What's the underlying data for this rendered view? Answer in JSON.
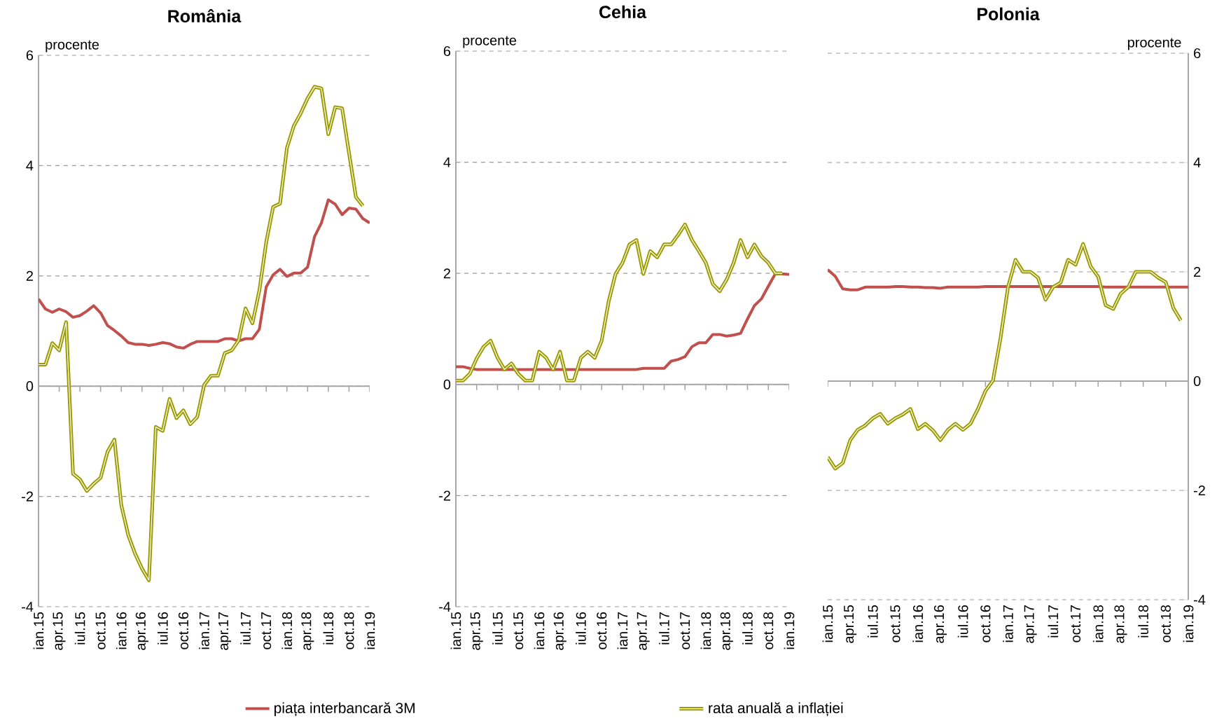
{
  "chart_data": [
    {
      "type": "line",
      "title": "România",
      "ylabel": "procente",
      "categories": [
        "ian.15",
        null,
        null,
        "apr.15",
        null,
        null,
        "iul.15",
        null,
        null,
        "oct.15",
        null,
        null,
        "ian.16",
        null,
        null,
        "apr.16",
        null,
        null,
        "iul.16",
        null,
        null,
        "oct.16",
        null,
        null,
        "ian.17",
        null,
        null,
        "apr.17",
        null,
        null,
        "iul.17",
        null,
        null,
        "oct.17",
        null,
        null,
        "ian.18",
        null,
        null,
        "apr.18",
        null,
        null,
        "iul.18",
        null,
        null,
        "oct.18",
        null,
        null,
        "ian.19"
      ],
      "series": [
        {
          "name": "piața interbancară 3M",
          "color": "#c0504d",
          "values": [
            1.58,
            1.4,
            1.34,
            1.4,
            1.35,
            1.25,
            1.28,
            1.36,
            1.46,
            1.33,
            1.1,
            1.01,
            0.91,
            0.79,
            0.76,
            0.76,
            0.74,
            0.76,
            0.79,
            0.77,
            0.71,
            0.69,
            0.76,
            0.81,
            0.81,
            0.81,
            0.81,
            0.86,
            0.86,
            0.82,
            0.86,
            0.86,
            1.03,
            1.8,
            2.02,
            2.12,
            1.99,
            2.05,
            2.05,
            2.16,
            2.71,
            2.96,
            3.38,
            3.3,
            3.11,
            3.23,
            3.21,
            3.04,
            2.96
          ]
        },
        {
          "name": "rata anuală a inflației",
          "color": "#9c9c00",
          "values": [
            0.39,
            0.39,
            0.78,
            0.65,
            1.16,
            -1.59,
            -1.69,
            -1.9,
            -1.77,
            -1.66,
            -1.19,
            -0.97,
            -2.16,
            -2.7,
            -3.04,
            -3.31,
            -3.52,
            -0.74,
            -0.81,
            -0.23,
            -0.58,
            -0.44,
            -0.69,
            -0.56,
            0.02,
            0.19,
            0.19,
            0.6,
            0.65,
            0.83,
            1.41,
            1.14,
            1.73,
            2.61,
            3.25,
            3.31,
            4.32,
            4.72,
            4.95,
            5.22,
            5.43,
            5.4,
            4.57,
            5.06,
            5.04,
            4.23,
            3.43,
            3.27,
            null
          ]
        }
      ],
      "ylim": [
        -4,
        6
      ],
      "yticks": [
        -4,
        -2,
        0,
        2,
        4,
        6
      ],
      "grid": "y",
      "legend": "bottom"
    },
    {
      "type": "line",
      "title": "Cehia",
      "ylabel": "procente",
      "categories": [
        "ian.15",
        null,
        null,
        "apr.15",
        null,
        null,
        "iul.15",
        null,
        null,
        "oct.15",
        null,
        null,
        "ian.16",
        null,
        null,
        "apr.16",
        null,
        null,
        "iul.16",
        null,
        null,
        "oct.16",
        null,
        null,
        "ian.17",
        null,
        null,
        "apr.17",
        null,
        null,
        "iul.17",
        null,
        null,
        "oct.17",
        null,
        null,
        "ian.18",
        null,
        null,
        "apr.18",
        null,
        null,
        "iul.18",
        null,
        null,
        "oct.18",
        null,
        null,
        "ian.19"
      ],
      "series": [
        {
          "color": "#c0504d",
          "values": [
            0.32,
            0.32,
            0.29,
            0.27,
            0.27,
            0.27,
            0.27,
            0.27,
            0.27,
            0.27,
            0.27,
            0.27,
            0.27,
            0.27,
            0.27,
            0.27,
            0.27,
            0.27,
            0.27,
            0.27,
            0.27,
            0.27,
            0.27,
            0.27,
            0.27,
            0.27,
            0.27,
            0.29,
            0.29,
            0.29,
            0.29,
            0.42,
            0.45,
            0.5,
            0.68,
            0.75,
            0.75,
            0.9,
            0.9,
            0.87,
            0.89,
            0.92,
            1.18,
            1.42,
            1.54,
            1.77,
            1.99,
            1.99,
            1.98
          ]
        },
        {
          "color": "#9c9c00",
          "values": [
            0.07,
            0.07,
            0.19,
            0.47,
            0.68,
            0.79,
            0.48,
            0.27,
            0.38,
            0.19,
            0.07,
            0.07,
            0.59,
            0.48,
            0.27,
            0.59,
            0.07,
            0.07,
            0.48,
            0.59,
            0.48,
            0.79,
            1.49,
            1.99,
            2.19,
            2.52,
            2.6,
            1.99,
            2.4,
            2.29,
            2.52,
            2.52,
            2.69,
            2.88,
            2.6,
            2.4,
            2.19,
            1.81,
            1.68,
            1.89,
            2.19,
            2.6,
            2.29,
            2.52,
            2.31,
            2.19,
            2.0,
            2.0,
            null
          ]
        }
      ],
      "ylim": [
        -4,
        6
      ],
      "yticks": [
        -4,
        -2,
        0,
        2,
        4,
        6
      ],
      "grid": "y"
    },
    {
      "type": "line",
      "title": "Polonia",
      "ylabel": "procente",
      "categories": [
        "ian.15",
        null,
        null,
        "apr.15",
        null,
        null,
        "iul.15",
        null,
        null,
        "oct.15",
        null,
        null,
        "ian.16",
        null,
        null,
        "apr.16",
        null,
        null,
        "iul.16",
        null,
        null,
        "oct.16",
        null,
        null,
        "ian.17",
        null,
        null,
        "apr.17",
        null,
        null,
        "iul.17",
        null,
        null,
        "oct.17",
        null,
        null,
        "ian.18",
        null,
        null,
        "apr.18",
        null,
        null,
        "iul.18",
        null,
        null,
        "oct.18",
        null,
        null,
        "ian.19"
      ],
      "series": [
        {
          "color": "#c0504d",
          "values": [
            2.04,
            1.92,
            1.69,
            1.67,
            1.67,
            1.72,
            1.72,
            1.72,
            1.72,
            1.73,
            1.73,
            1.72,
            1.72,
            1.71,
            1.71,
            1.7,
            1.72,
            1.72,
            1.72,
            1.72,
            1.72,
            1.73,
            1.73,
            1.73,
            1.73,
            1.73,
            1.73,
            1.73,
            1.73,
            1.73,
            1.73,
            1.73,
            1.73,
            1.73,
            1.73,
            1.73,
            1.73,
            1.72,
            1.72,
            1.72,
            1.72,
            1.72,
            1.72,
            1.72,
            1.72,
            1.72,
            1.72,
            1.72,
            1.72
          ]
        },
        {
          "color": "#9c9c00",
          "values": [
            -1.39,
            -1.6,
            -1.5,
            -1.08,
            -0.89,
            -0.81,
            -0.68,
            -0.6,
            -0.78,
            -0.68,
            -0.61,
            -0.51,
            -0.88,
            -0.78,
            -0.9,
            -1.08,
            -0.89,
            -0.78,
            -0.89,
            -0.78,
            -0.51,
            -0.18,
            0.01,
            0.78,
            1.72,
            2.22,
            2.0,
            2.0,
            1.89,
            1.49,
            1.72,
            1.8,
            2.22,
            2.13,
            2.51,
            2.1,
            1.91,
            1.39,
            1.32,
            1.6,
            1.72,
            2.0,
            2.0,
            2.0,
            1.89,
            1.81,
            1.34,
            1.11,
            null
          ]
        }
      ],
      "ylim": [
        -4,
        6
      ],
      "yticks": [
        -4,
        -2,
        0,
        2,
        4,
        6
      ],
      "grid": "y"
    }
  ]
}
